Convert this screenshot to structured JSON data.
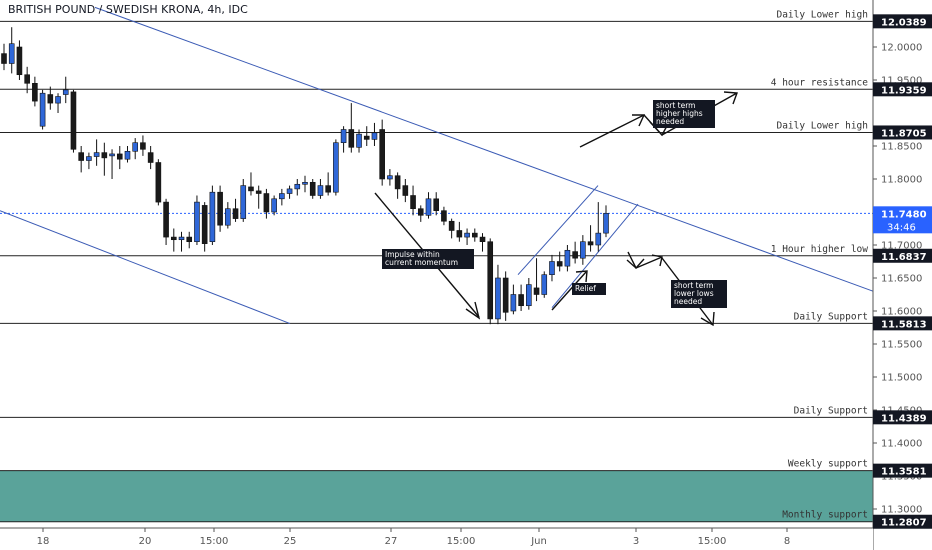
{
  "chart_data": {
    "type": "candlestick",
    "title": "BRITISH POUND / SWEDISH KRONA, 4h, IDC",
    "ylim": [
      11.27,
      12.06
    ],
    "y_ticks": [
      12.0,
      11.95,
      11.85,
      11.8,
      11.7,
      11.65,
      11.6,
      11.55,
      11.5,
      11.45,
      11.4,
      11.35,
      11.3
    ],
    "x_ticks": [
      "18",
      "20",
      "15:00",
      "25",
      "27",
      "15:00",
      "Jun",
      "3",
      "15:00",
      "8"
    ],
    "current_price": {
      "value": 11.748,
      "label": "11.7480",
      "countdown": "34:46"
    },
    "levels": [
      {
        "value": 12.0389,
        "label": "12.0389",
        "name": "Daily Lower high"
      },
      {
        "value": 11.9359,
        "label": "11.9359",
        "name": "4 hour resistance"
      },
      {
        "value": 11.8705,
        "label": "11.8705",
        "name": "Daily Lower high"
      },
      {
        "value": 11.6837,
        "label": "11.6837",
        "name": "1 Hour higher low"
      },
      {
        "value": 11.5813,
        "label": "11.5813",
        "name": "Daily Support"
      },
      {
        "value": 11.4389,
        "label": "11.4389",
        "name": "Daily Support"
      },
      {
        "value": 11.3581,
        "label": "11.3581",
        "name": "Weekly support"
      },
      {
        "value": 11.2807,
        "label": "11.2807",
        "name": "Monthly support"
      }
    ],
    "support_zone": {
      "from": 11.3581,
      "to": 11.2807,
      "color": "#5aa39a"
    },
    "annotations": [
      {
        "text": "Impulse within current momentum"
      },
      {
        "text": "Relief"
      },
      {
        "text": "short term higher highs needed"
      },
      {
        "text": "short term lower lows needed"
      }
    ],
    "candles": [
      {
        "o": 11.99,
        "h": 12.005,
        "l": 11.965,
        "c": 11.975
      },
      {
        "o": 11.975,
        "h": 12.03,
        "l": 11.96,
        "c": 12.005
      },
      {
        "o": 12.0,
        "h": 12.01,
        "l": 11.95,
        "c": 11.958
      },
      {
        "o": 11.958,
        "h": 11.97,
        "l": 11.93,
        "c": 11.945
      },
      {
        "o": 11.945,
        "h": 11.955,
        "l": 11.91,
        "c": 11.918
      },
      {
        "o": 11.88,
        "h": 11.935,
        "l": 11.875,
        "c": 11.93
      },
      {
        "o": 11.928,
        "h": 11.94,
        "l": 11.905,
        "c": 11.915
      },
      {
        "o": 11.915,
        "h": 11.93,
        "l": 11.9,
        "c": 11.925
      },
      {
        "o": 11.928,
        "h": 11.955,
        "l": 11.915,
        "c": 11.935
      },
      {
        "o": 11.932,
        "h": 11.935,
        "l": 11.84,
        "c": 11.845
      },
      {
        "o": 11.84,
        "h": 11.85,
        "l": 11.81,
        "c": 11.828
      },
      {
        "o": 11.828,
        "h": 11.84,
        "l": 11.815,
        "c": 11.834
      },
      {
        "o": 11.834,
        "h": 11.86,
        "l": 11.82,
        "c": 11.84
      },
      {
        "o": 11.84,
        "h": 11.855,
        "l": 11.805,
        "c": 11.832
      },
      {
        "o": 11.835,
        "h": 11.845,
        "l": 11.8,
        "c": 11.838
      },
      {
        "o": 11.838,
        "h": 11.85,
        "l": 11.815,
        "c": 11.83
      },
      {
        "o": 11.83,
        "h": 11.85,
        "l": 11.825,
        "c": 11.842
      },
      {
        "o": 11.842,
        "h": 11.862,
        "l": 11.83,
        "c": 11.855
      },
      {
        "o": 11.855,
        "h": 11.866,
        "l": 11.835,
        "c": 11.845
      },
      {
        "o": 11.84,
        "h": 11.85,
        "l": 11.815,
        "c": 11.825
      },
      {
        "o": 11.825,
        "h": 11.83,
        "l": 11.76,
        "c": 11.765
      },
      {
        "o": 11.765,
        "h": 11.77,
        "l": 11.7,
        "c": 11.712
      },
      {
        "o": 11.712,
        "h": 11.725,
        "l": 11.69,
        "c": 11.708
      },
      {
        "o": 11.708,
        "h": 11.72,
        "l": 11.69,
        "c": 11.712
      },
      {
        "o": 11.712,
        "h": 11.72,
        "l": 11.695,
        "c": 11.705
      },
      {
        "o": 11.705,
        "h": 11.775,
        "l": 11.7,
        "c": 11.765
      },
      {
        "o": 11.76,
        "h": 11.765,
        "l": 11.69,
        "c": 11.702
      },
      {
        "o": 11.705,
        "h": 11.79,
        "l": 11.7,
        "c": 11.78
      },
      {
        "o": 11.78,
        "h": 11.79,
        "l": 11.72,
        "c": 11.73
      },
      {
        "o": 11.73,
        "h": 11.765,
        "l": 11.725,
        "c": 11.755
      },
      {
        "o": 11.755,
        "h": 11.77,
        "l": 11.735,
        "c": 11.74
      },
      {
        "o": 11.74,
        "h": 11.8,
        "l": 11.735,
        "c": 11.79
      },
      {
        "o": 11.788,
        "h": 11.81,
        "l": 11.775,
        "c": 11.782
      },
      {
        "o": 11.782,
        "h": 11.79,
        "l": 11.755,
        "c": 11.778
      },
      {
        "o": 11.778,
        "h": 11.785,
        "l": 11.74,
        "c": 11.75
      },
      {
        "o": 11.75,
        "h": 11.775,
        "l": 11.745,
        "c": 11.77
      },
      {
        "o": 11.77,
        "h": 11.785,
        "l": 11.76,
        "c": 11.778
      },
      {
        "o": 11.778,
        "h": 11.79,
        "l": 11.77,
        "c": 11.785
      },
      {
        "o": 11.785,
        "h": 11.8,
        "l": 11.775,
        "c": 11.792
      },
      {
        "o": 11.792,
        "h": 11.805,
        "l": 11.78,
        "c": 11.795
      },
      {
        "o": 11.795,
        "h": 11.8,
        "l": 11.77,
        "c": 11.775
      },
      {
        "o": 11.775,
        "h": 11.8,
        "l": 11.77,
        "c": 11.79
      },
      {
        "o": 11.79,
        "h": 11.81,
        "l": 11.775,
        "c": 11.78
      },
      {
        "o": 11.78,
        "h": 11.86,
        "l": 11.775,
        "c": 11.855
      },
      {
        "o": 11.855,
        "h": 11.88,
        "l": 11.84,
        "c": 11.875
      },
      {
        "o": 11.875,
        "h": 11.915,
        "l": 11.84,
        "c": 11.848
      },
      {
        "o": 11.848,
        "h": 11.875,
        "l": 11.84,
        "c": 11.868
      },
      {
        "o": 11.865,
        "h": 11.88,
        "l": 11.85,
        "c": 11.86
      },
      {
        "o": 11.86,
        "h": 11.885,
        "l": 11.85,
        "c": 11.87
      },
      {
        "o": 11.875,
        "h": 11.89,
        "l": 11.79,
        "c": 11.8
      },
      {
        "o": 11.8,
        "h": 11.815,
        "l": 11.79,
        "c": 11.805
      },
      {
        "o": 11.805,
        "h": 11.81,
        "l": 11.77,
        "c": 11.785
      },
      {
        "o": 11.79,
        "h": 11.8,
        "l": 11.765,
        "c": 11.775
      },
      {
        "o": 11.775,
        "h": 11.79,
        "l": 11.745,
        "c": 11.755
      },
      {
        "o": 11.755,
        "h": 11.76,
        "l": 11.735,
        "c": 11.745
      },
      {
        "o": 11.745,
        "h": 11.78,
        "l": 11.74,
        "c": 11.77
      },
      {
        "o": 11.77,
        "h": 11.78,
        "l": 11.745,
        "c": 11.752
      },
      {
        "o": 11.752,
        "h": 11.758,
        "l": 11.73,
        "c": 11.736
      },
      {
        "o": 11.736,
        "h": 11.74,
        "l": 11.71,
        "c": 11.722
      },
      {
        "o": 11.722,
        "h": 11.735,
        "l": 11.705,
        "c": 11.712
      },
      {
        "o": 11.712,
        "h": 11.725,
        "l": 11.7,
        "c": 11.718
      },
      {
        "o": 11.718,
        "h": 11.725,
        "l": 11.705,
        "c": 11.712
      },
      {
        "o": 11.712,
        "h": 11.718,
        "l": 11.69,
        "c": 11.705
      },
      {
        "o": 11.705,
        "h": 11.71,
        "l": 11.58,
        "c": 11.588
      },
      {
        "o": 11.588,
        "h": 11.67,
        "l": 11.58,
        "c": 11.65
      },
      {
        "o": 11.65,
        "h": 11.66,
        "l": 11.585,
        "c": 11.598
      },
      {
        "o": 11.6,
        "h": 11.64,
        "l": 11.595,
        "c": 11.625
      },
      {
        "o": 11.625,
        "h": 11.64,
        "l": 11.6,
        "c": 11.608
      },
      {
        "o": 11.608,
        "h": 11.65,
        "l": 11.602,
        "c": 11.64
      },
      {
        "o": 11.635,
        "h": 11.68,
        "l": 11.615,
        "c": 11.625
      },
      {
        "o": 11.625,
        "h": 11.66,
        "l": 11.62,
        "c": 11.655
      },
      {
        "o": 11.655,
        "h": 11.685,
        "l": 11.645,
        "c": 11.675
      },
      {
        "o": 11.675,
        "h": 11.69,
        "l": 11.66,
        "c": 11.668
      },
      {
        "o": 11.668,
        "h": 11.7,
        "l": 11.66,
        "c": 11.692
      },
      {
        "o": 11.69,
        "h": 11.705,
        "l": 11.672,
        "c": 11.68
      },
      {
        "o": 11.68,
        "h": 11.715,
        "l": 11.67,
        "c": 11.705
      },
      {
        "o": 11.705,
        "h": 11.73,
        "l": 11.69,
        "c": 11.7
      },
      {
        "o": 11.7,
        "h": 11.765,
        "l": 11.69,
        "c": 11.718
      },
      {
        "o": 11.718,
        "h": 11.76,
        "l": 11.712,
        "c": 11.748
      }
    ]
  }
}
